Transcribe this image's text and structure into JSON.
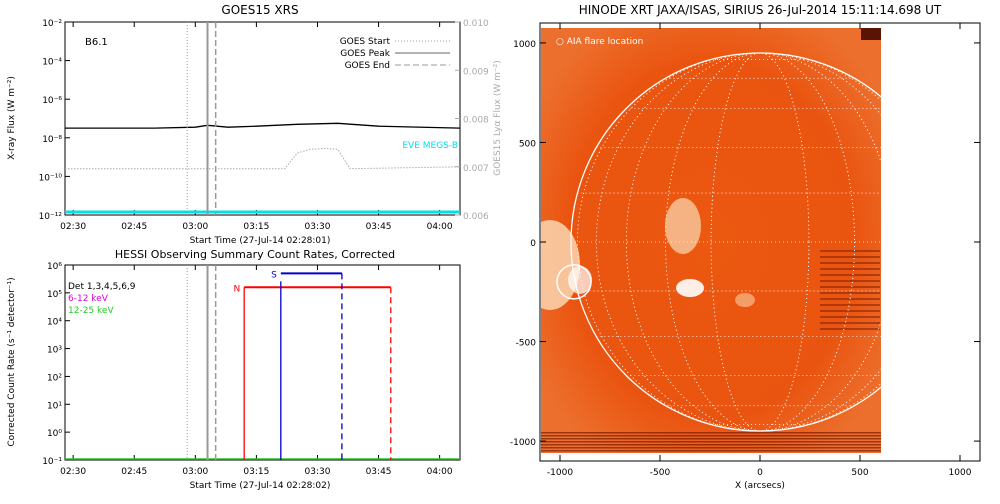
{
  "chart_data": [
    {
      "type": "line",
      "title": "GOES15 XRS",
      "xlabel": "Start Time (27-Jul-14 02:28:01)",
      "ylabel": "X-ray Flux (W m⁻²)",
      "y2label": "GOES15 Lyα Flux (W m⁻²)",
      "x_ticks": [
        "02:30",
        "02:45",
        "03:00",
        "03:15",
        "03:30",
        "03:45",
        "04:00"
      ],
      "y_ticks": [
        "10⁻¹²",
        "10⁻¹⁰",
        "10⁻⁸",
        "10⁻⁶",
        "10⁻⁴",
        "10⁻²"
      ],
      "y2_ticks": [
        "0.006",
        "0.007",
        "0.008",
        "0.009",
        "0.010"
      ],
      "ylim_log10": [
        -12,
        -2
      ],
      "y2lim": [
        0.006,
        0.01
      ],
      "goes_class_label": "B6.1",
      "eve_label": "EVE MEGS-B",
      "legend": [
        {
          "label": "GOES Start",
          "style": "dotted"
        },
        {
          "label": "GOES Peak",
          "style": "solid"
        },
        {
          "label": "GOES End",
          "style": "dashed"
        }
      ],
      "legend_position": "top-right",
      "markers": {
        "goes_start": "02:58",
        "goes_peak": "03:03",
        "goes_end": "03:05"
      },
      "series": [
        {
          "x": [
            "02:28",
            "02:50",
            "03:00",
            "03:03",
            "03:08",
            "03:15",
            "03:25",
            "03:35",
            "03:45",
            "04:05"
          ],
          "log10_values": [
            -7.5,
            -7.5,
            -7.45,
            -7.35,
            -7.45,
            -7.4,
            -7.3,
            -7.25,
            -7.4,
            -7.5
          ]
        },
        {
          "x": [
            "02:28",
            "03:00",
            "03:22",
            "03:25",
            "03:28",
            "03:32",
            "03:35",
            "03:38",
            "04:05"
          ],
          "log10_values": [
            -9.6,
            -9.6,
            -9.6,
            -8.8,
            -8.6,
            -8.55,
            -8.6,
            -9.6,
            -9.5
          ]
        }
      ],
      "colors": {
        "flux": "#000000",
        "lya": "#aaaaaa",
        "eve": "#00e0e8",
        "marker": "#999999"
      }
    },
    {
      "type": "line",
      "title": "HESSI Observing Summary Count Rates, Corrected",
      "xlabel": "Start Time (27-Jul-14 02:28:02)",
      "ylabel": "Corrected Count Rate (s⁻¹ detector⁻¹)",
      "x_ticks": [
        "02:30",
        "02:45",
        "03:00",
        "03:15",
        "03:30",
        "03:45",
        "04:00"
      ],
      "y_ticks": [
        "10⁻¹",
        "10⁰",
        "10¹",
        "10²",
        "10³",
        "10⁴",
        "10⁵",
        "10⁶"
      ],
      "ylim_log10": [
        -1,
        6
      ],
      "legend": [
        {
          "label": "Det 1,3,4,5,6,9",
          "color": "#000000"
        },
        {
          "label": "6-12 keV",
          "color": "#dd00dd"
        },
        {
          "label": "12-25 keV",
          "color": "#22cc22"
        }
      ],
      "legend_position": "top-left",
      "markers": {
        "goes_start": "02:58",
        "goes_peak": "03:03",
        "goes_end": "03:05"
      },
      "intervals": [
        {
          "label": "N",
          "start": "03:12",
          "end": "03:48",
          "log10_level": 5.2,
          "color": "#ff0000"
        },
        {
          "label": "S",
          "start": "03:21",
          "end": "03:36",
          "log10_level": 5.7,
          "color": "#0000cc"
        }
      ]
    },
    {
      "type": "heatmap",
      "title": "HINODE XRT JAXA/ISAS, SIRIUS 26-Jul-2014 15:11:14.698 UT",
      "xlabel": "X (arcsecs)",
      "ylabel": "",
      "annotation": "○ AIA flare location",
      "x_ticks": [
        "-1000",
        "-500",
        "0",
        "500",
        "1000"
      ],
      "y_ticks": [
        "-1000",
        "-500",
        "0",
        "500",
        "1000"
      ],
      "xlim": [
        -1100,
        1100
      ],
      "ylim": [
        -1100,
        1100
      ],
      "solar_radius_arcsec": 945,
      "flare_location": {
        "x": -930,
        "y": -200
      }
    }
  ]
}
